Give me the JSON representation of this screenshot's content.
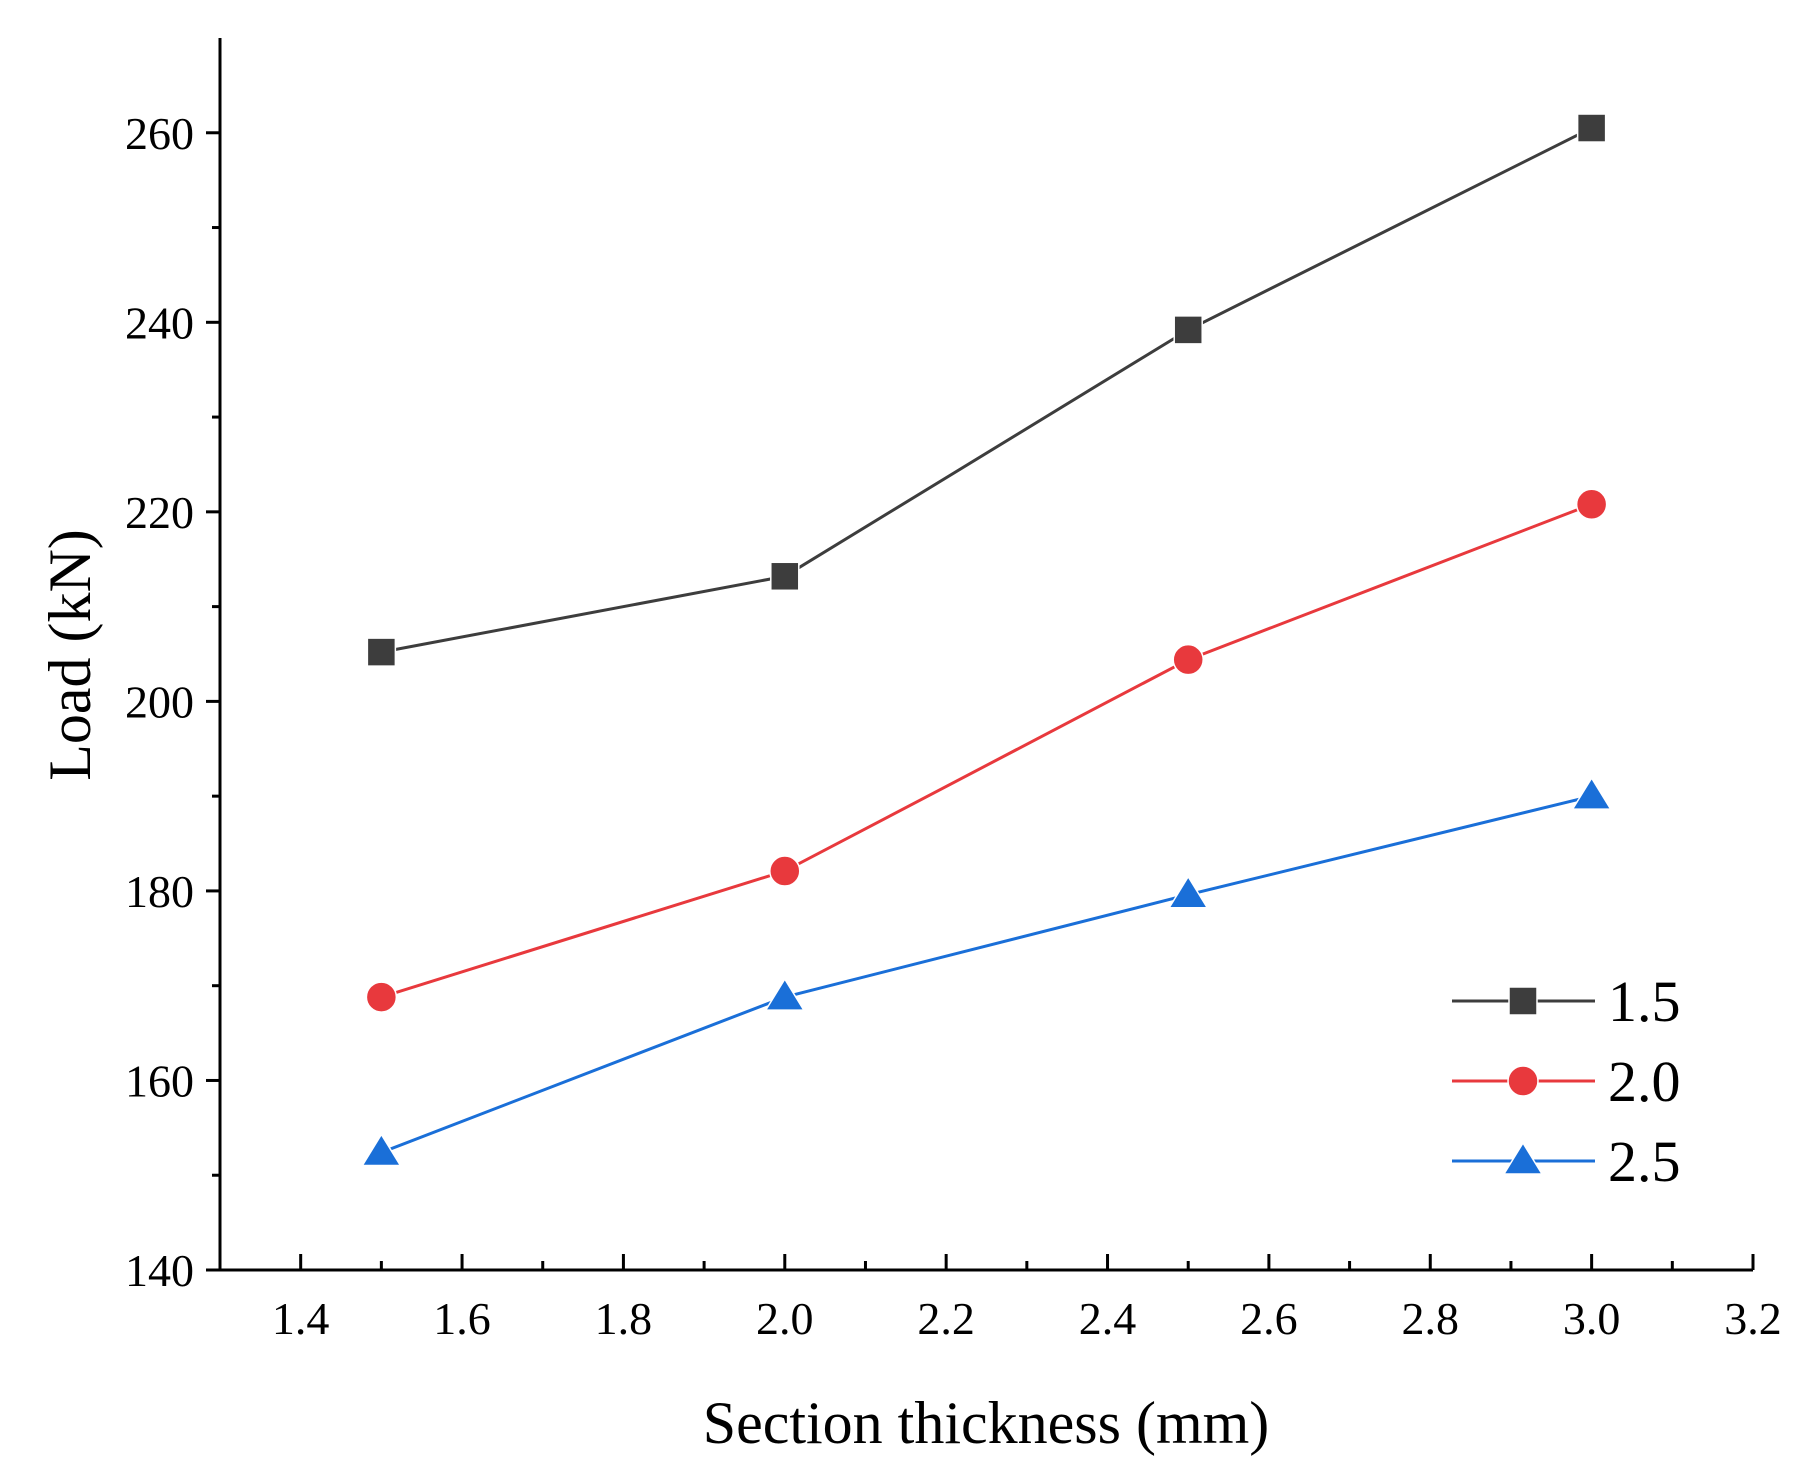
{
  "chart_data": {
    "type": "line",
    "title": "",
    "xlabel": "Section thickness (mm)",
    "ylabel": "Load (kN)",
    "xlim": [
      1.3,
      3.2
    ],
    "ylim": [
      140,
      270
    ],
    "xticks": [
      1.4,
      1.6,
      1.8,
      2.0,
      2.2,
      2.4,
      2.6,
      2.8,
      3.0,
      3.2
    ],
    "xtick_labels": [
      "1.4",
      "1.6",
      "1.8",
      "2.0",
      "2.2",
      "2.4",
      "2.6",
      "2.8",
      "3.0",
      "3.2"
    ],
    "yticks": [
      140,
      160,
      180,
      200,
      220,
      240,
      260
    ],
    "ytick_labels": [
      "140",
      "160",
      "180",
      "200",
      "220",
      "240",
      "260"
    ],
    "x": [
      1.5,
      2.0,
      2.5,
      3.0
    ],
    "series": [
      {
        "name": "1.5",
        "marker": "square",
        "color": "#3d3d3d",
        "values": [
          205.2,
          213.2,
          239.2,
          260.5
        ]
      },
      {
        "name": "2.0",
        "marker": "circle",
        "color": "#e8393d",
        "values": [
          168.8,
          182.1,
          204.4,
          220.8
        ]
      },
      {
        "name": "2.5",
        "marker": "triangle",
        "color": "#1a6fd8",
        "values": [
          152.4,
          168.8,
          179.6,
          190.0
        ]
      }
    ],
    "grid": false,
    "legend_position": "bottom-right"
  }
}
